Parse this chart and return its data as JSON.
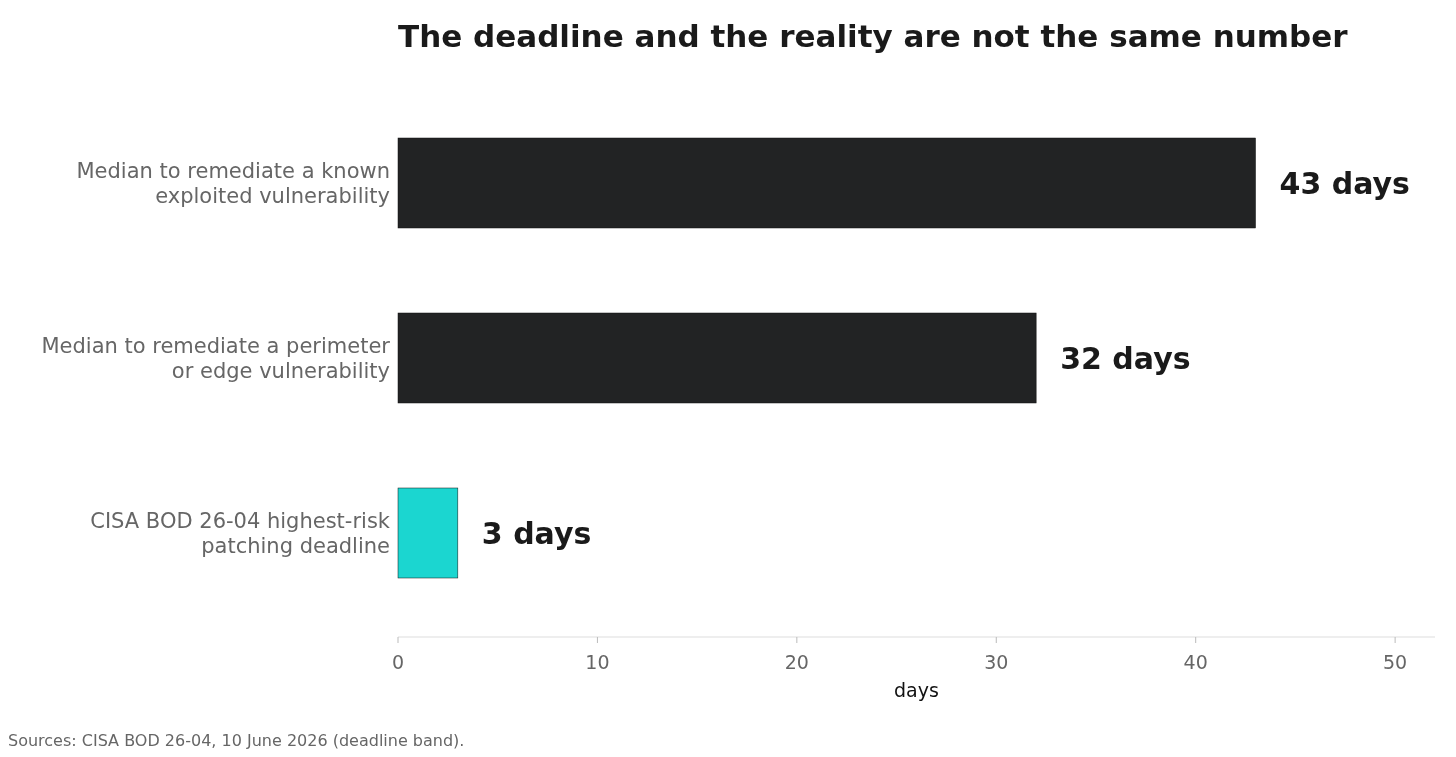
{
  "chart_data": {
    "type": "bar",
    "orientation": "horizontal",
    "title": "The deadline and the reality are not the same number",
    "categories": [
      "Median to remediate a known exploited vulnerability",
      "Median to remediate a perimeter or edge vulnerability",
      "CISA BOD 26-04 highest-risk patching deadline"
    ],
    "values": [
      43,
      32,
      3
    ],
    "colors": [
      "#222324",
      "#222324",
      "#1bd6d0"
    ],
    "value_labels": [
      "43 days",
      "32 days",
      "3 days"
    ],
    "xlabel": "days",
    "xlim": [
      0,
      52
    ],
    "xticks": [
      0,
      10,
      20,
      30,
      40,
      50
    ],
    "grid": false,
    "annotations": [
      "Sources: CISA BOD 26-04, 10 June 2026 (deadline band)."
    ]
  }
}
